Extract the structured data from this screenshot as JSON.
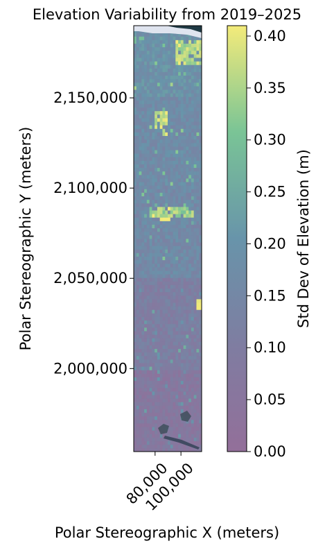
{
  "chart_data": {
    "type": "heatmap",
    "title": "Elevation Variability from 2019–2025",
    "xlabel": "Polar Stereographic X (meters)",
    "ylabel": "Polar Stereographic Y (meters)",
    "xlim": [
      63500,
      116000
    ],
    "ylim": [
      1954000,
      2190000
    ],
    "x_ticks": [
      80000,
      100000
    ],
    "x_tick_labels": [
      "80,000",
      "100,000"
    ],
    "y_ticks": [
      2000000,
      2050000,
      2100000,
      2150000
    ],
    "y_tick_labels": [
      "2,000,000",
      "2,050,000",
      "2,100,000",
      "2,150,000"
    ],
    "colorbar": {
      "label": "Std Dev of Elevation (m)",
      "range": [
        0.0,
        0.41
      ],
      "ticks": [
        0.0,
        0.05,
        0.1,
        0.15,
        0.2,
        0.25,
        0.3,
        0.35,
        0.4
      ],
      "tick_labels": [
        "0.00",
        "0.05",
        "0.10",
        "0.15",
        "0.20",
        "0.25",
        "0.30",
        "0.35",
        "0.40"
      ],
      "colormap": "viridis",
      "alpha": 0.6
    },
    "basemap": "satellite imagery",
    "regions": [
      {
        "x": [
          63500,
          116000
        ],
        "y": [
          1954000,
          2000000
        ],
        "std_dev": 0.07
      },
      {
        "x": [
          63500,
          116000
        ],
        "y": [
          2000000,
          2050000
        ],
        "std_dev": 0.11
      },
      {
        "x": [
          63500,
          116000
        ],
        "y": [
          2050000,
          2100000
        ],
        "std_dev": 0.16
      },
      {
        "x": [
          63500,
          116000
        ],
        "y": [
          2100000,
          2150000
        ],
        "std_dev": 0.17
      },
      {
        "x": [
          63500,
          116000
        ],
        "y": [
          2150000,
          2190000
        ],
        "std_dev": 0.19
      },
      {
        "x": [
          84000,
          91000
        ],
        "y": [
          2081000,
          2086000
        ],
        "std_dev": 0.4
      },
      {
        "x": [
          80000,
          90000
        ],
        "y": [
          2130000,
          2142000
        ],
        "std_dev": 0.38
      },
      {
        "x": [
          96000,
          116000
        ],
        "y": [
          2168000,
          2182000
        ],
        "std_dev": 0.36
      },
      {
        "x": [
          75000,
          110000
        ],
        "y": [
          2084000,
          2090000
        ],
        "std_dev": 0.34
      },
      {
        "x": [
          112000,
          116000
        ],
        "y": [
          2032000,
          2038000
        ],
        "std_dev": 0.4
      }
    ]
  }
}
